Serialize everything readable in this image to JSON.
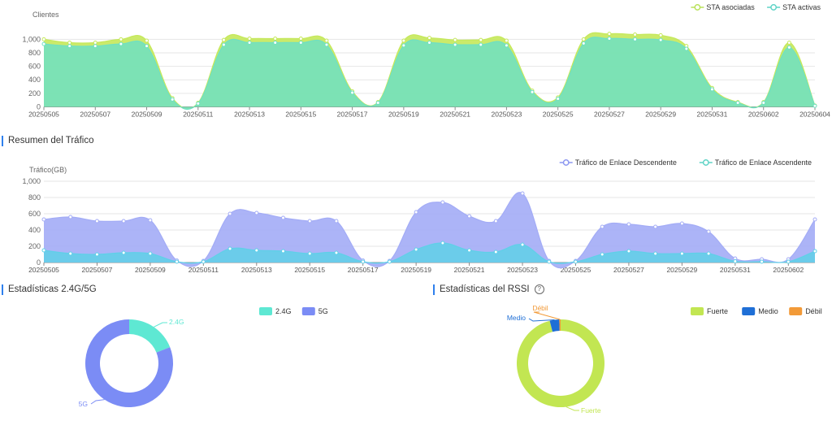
{
  "clients_chart": {
    "ylabel": "Clientes",
    "legend": [
      {
        "name": "STA asociadas",
        "color": "#b9e25a"
      },
      {
        "name": "STA activas",
        "color": "#5fd3c6"
      }
    ]
  },
  "traffic_section": {
    "title": "Resumen del Tráfico"
  },
  "traffic_chart": {
    "ylabel": "Tráfico(GB)",
    "legend": [
      {
        "name": "Tráfico de Enlace Descendente",
        "color": "#8c97f0"
      },
      {
        "name": "Tráfico de Enlace Ascendente",
        "color": "#5fd3c6"
      }
    ]
  },
  "band_section": {
    "title": "Estadísticas 2.4G/5G"
  },
  "rssi_section": {
    "title": "Estadísticas del RSSI",
    "help_icon": "help-circle-icon"
  },
  "chart_data": [
    {
      "type": "area",
      "ylabel": "Clientes",
      "ylim": [
        0,
        1200
      ],
      "yticks": [
        0,
        200,
        400,
        600,
        800,
        1000
      ],
      "ytick_labels": [
        "0",
        "200",
        "400",
        "600",
        "800",
        "1,000"
      ],
      "grid": true,
      "legend_position": "top-right",
      "x": [
        "20250505",
        "20250506",
        "20250507",
        "20250508",
        "20250509",
        "20250510",
        "20250511",
        "20250512",
        "20250513",
        "20250514",
        "20250515",
        "20250516",
        "20250517",
        "20250518",
        "20250519",
        "20250520",
        "20250521",
        "20250522",
        "20250523",
        "20250524",
        "20250525",
        "20250526",
        "20250527",
        "20250528",
        "20250529",
        "20250530",
        "20250531",
        "20250601",
        "20250602",
        "20250603",
        "20250604"
      ],
      "xtick_labels": [
        "20250505",
        "20250507",
        "20250509",
        "20250511",
        "20250513",
        "20250515",
        "20250517",
        "20250519",
        "20250521",
        "20250523",
        "20250525",
        "20250527",
        "20250529",
        "20250531",
        "20250602",
        "20250604"
      ],
      "series": [
        {
          "name": "STA asociadas",
          "color": "#c5e85a",
          "values": [
            1000,
            950,
            950,
            1000,
            980,
            130,
            60,
            990,
            1010,
            1010,
            1010,
            980,
            230,
            70,
            980,
            1020,
            990,
            990,
            980,
            240,
            140,
            1000,
            1080,
            1070,
            1060,
            900,
            280,
            70,
            70,
            950,
            20
          ]
        },
        {
          "name": "STA activas",
          "color": "#6fe0c2",
          "values": [
            930,
            900,
            900,
            930,
            900,
            110,
            50,
            920,
            950,
            950,
            950,
            920,
            210,
            60,
            910,
            950,
            920,
            920,
            910,
            220,
            120,
            940,
            1010,
            1000,
            990,
            860,
            260,
            60,
            60,
            880,
            15
          ]
        }
      ]
    },
    {
      "type": "area",
      "ylabel": "Tráfico(GB)",
      "ylim": [
        0,
        1000
      ],
      "yticks": [
        0,
        200,
        400,
        600,
        800,
        1000
      ],
      "ytick_labels": [
        "0",
        "200",
        "400",
        "600",
        "800",
        "1,000"
      ],
      "grid": true,
      "legend_position": "top-right",
      "x": [
        "20250505",
        "20250506",
        "20250507",
        "20250508",
        "20250509",
        "20250510",
        "20250511",
        "20250512",
        "20250513",
        "20250514",
        "20250515",
        "20250516",
        "20250517",
        "20250518",
        "20250519",
        "20250520",
        "20250521",
        "20250522",
        "20250523",
        "20250524",
        "20250525",
        "20250526",
        "20250527",
        "20250528",
        "20250529",
        "20250530",
        "20250531",
        "20250601",
        "20250602",
        "20250603"
      ],
      "xtick_labels": [
        "20250505",
        "20250507",
        "20250509",
        "20250511",
        "20250513",
        "20250515",
        "20250517",
        "20250519",
        "20250521",
        "20250523",
        "20250525",
        "20250527",
        "20250529",
        "20250531",
        "20250602"
      ],
      "series": [
        {
          "name": "Tráfico de Enlace Descendente",
          "color": "#a3acf6",
          "values": [
            530,
            560,
            510,
            510,
            520,
            25,
            20,
            600,
            610,
            550,
            510,
            510,
            25,
            20,
            620,
            740,
            570,
            510,
            850,
            20,
            20,
            440,
            470,
            440,
            480,
            380,
            50,
            40,
            40,
            530
          ]
        },
        {
          "name": "Tráfico de Enlace Ascendente",
          "color": "#5fd0e8",
          "values": [
            150,
            110,
            100,
            120,
            110,
            10,
            10,
            170,
            150,
            140,
            110,
            120,
            10,
            10,
            160,
            240,
            150,
            130,
            220,
            10,
            10,
            100,
            140,
            110,
            110,
            110,
            15,
            10,
            10,
            140
          ]
        }
      ]
    },
    {
      "type": "pie",
      "donut": true,
      "title": "Estadísticas 2.4G/5G",
      "legend_position": "top-right",
      "slices": [
        {
          "label": "2.4G",
          "value": 19,
          "color": "#5ee8d3"
        },
        {
          "label": "5G",
          "value": 81,
          "color": "#7b8cf5"
        }
      ]
    },
    {
      "type": "pie",
      "donut": true,
      "title": "Estadísticas del RSSI",
      "legend_position": "top-right",
      "slices": [
        {
          "label": "Fuerte",
          "value": 96,
          "color": "#c2e652"
        },
        {
          "label": "Medio",
          "value": 3.5,
          "color": "#1f6fd6"
        },
        {
          "label": "Débil",
          "value": 0.5,
          "color": "#f29a38"
        }
      ]
    }
  ]
}
